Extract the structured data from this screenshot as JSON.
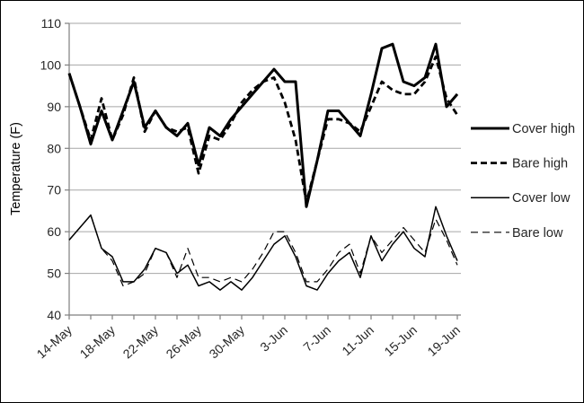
{
  "chart_data": {
    "type": "line",
    "title": "",
    "xlabel": "",
    "ylabel": "Temperature (F)",
    "ylim": [
      40,
      110
    ],
    "y_ticks": [
      40,
      50,
      60,
      70,
      80,
      90,
      100,
      110
    ],
    "n_days": 37,
    "x_start_label": "14-May",
    "x_end_label": "19-Jun",
    "x_tick_labels": [
      "14-May",
      "18-May",
      "22-May",
      "26-May",
      "30-May",
      "3-Jun",
      "7-Jun",
      "11-Jun",
      "15-Jun",
      "19-Jun"
    ],
    "x_tick_days": [
      0,
      4,
      8,
      12,
      16,
      20,
      24,
      28,
      32,
      36
    ],
    "x_minor_tick_every_days": 2,
    "grid": true,
    "legend_position": "right",
    "series": [
      {
        "name": "Cover high",
        "style": "thick-solid",
        "values": [
          98,
          90,
          81,
          89,
          82,
          89,
          96,
          85,
          89,
          85,
          83,
          86,
          76,
          85,
          83,
          87,
          90,
          93,
          96,
          99,
          96,
          96,
          66,
          77,
          89,
          89,
          86,
          83,
          93,
          104,
          105,
          96,
          95,
          97,
          105,
          90,
          93
        ]
      },
      {
        "name": "Bare high",
        "style": "thick-dashed",
        "values": [
          98,
          90,
          82,
          92,
          82,
          88,
          97,
          84,
          89,
          85,
          84,
          85,
          74,
          83,
          82,
          86,
          91,
          94,
          96,
          97,
          91,
          82,
          67,
          77,
          87,
          87,
          86,
          84,
          90,
          96,
          94,
          93,
          93,
          96,
          102,
          92,
          88
        ]
      },
      {
        "name": "Cover low",
        "style": "thin-solid",
        "values": [
          58,
          61,
          64,
          56,
          54,
          48,
          48,
          51,
          56,
          55,
          50,
          52,
          47,
          48,
          46,
          48,
          46,
          49,
          53,
          57,
          59,
          54,
          47,
          46,
          50,
          53,
          55,
          49,
          59,
          53,
          57,
          60,
          56,
          54,
          66,
          59,
          53
        ]
      },
      {
        "name": "Bare low",
        "style": "thin-dashed",
        "values": [
          58,
          61,
          64,
          56,
          53,
          47,
          48,
          50,
          56,
          55,
          49,
          56,
          49,
          49,
          48,
          49,
          48,
          51,
          55,
          60,
          60,
          55,
          48,
          48,
          51,
          55,
          57,
          50,
          59,
          55,
          58,
          61,
          58,
          55,
          63,
          58,
          52
        ]
      }
    ],
    "colors": {
      "line": "#000000",
      "grid": "#a6a6a6",
      "axis": "#7f7f7f",
      "text": "#262626"
    }
  }
}
